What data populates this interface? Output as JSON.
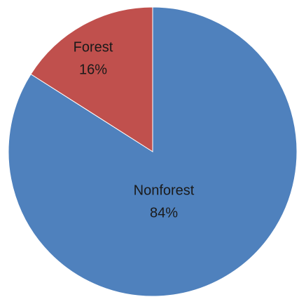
{
  "chart_data": {
    "type": "pie",
    "categories": [
      "Nonforest",
      "Forest"
    ],
    "values": [
      84,
      16
    ],
    "value_labels": [
      "84%",
      "16%"
    ],
    "colors": [
      "#4f81bd",
      "#c0504d"
    ]
  }
}
